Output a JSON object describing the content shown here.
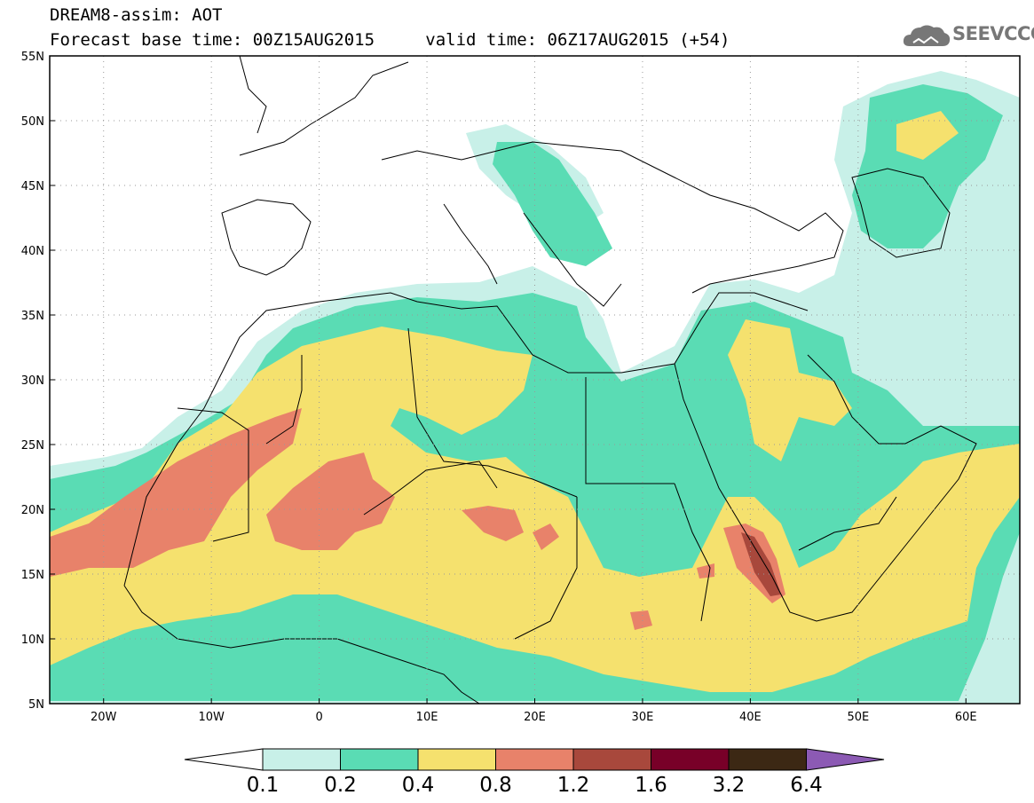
{
  "title": {
    "line1": "DREAM8-assim: AOT",
    "line2_left": "Forecast base time: 00Z15AUG2015",
    "line2_right": "valid time: 06Z17AUG2015 (+54)"
  },
  "logo": {
    "text": "SEEVCCC",
    "icon": "cloud-icon"
  },
  "map": {
    "lon_range": [
      -25,
      65
    ],
    "lat_range": [
      5,
      55
    ],
    "lat_ticks": [
      "55N",
      "50N",
      "45N",
      "40N",
      "35N",
      "30N",
      "25N",
      "20N",
      "15N",
      "10N",
      "5N"
    ],
    "lon_ticks": [
      "20W",
      "10W",
      "0",
      "10E",
      "20E",
      "30E",
      "40E",
      "50E",
      "60E"
    ]
  },
  "colorbar": {
    "labels": [
      "0.1",
      "0.2",
      "0.4",
      "0.8",
      "1.2",
      "1.6",
      "3.2",
      "6.4"
    ],
    "colors": [
      "#ffffff",
      "#c8f0e8",
      "#5adcb4",
      "#f5e16e",
      "#e8826a",
      "#a8483c",
      "#780028",
      "#3c2814",
      "#8c5ab4"
    ]
  }
}
